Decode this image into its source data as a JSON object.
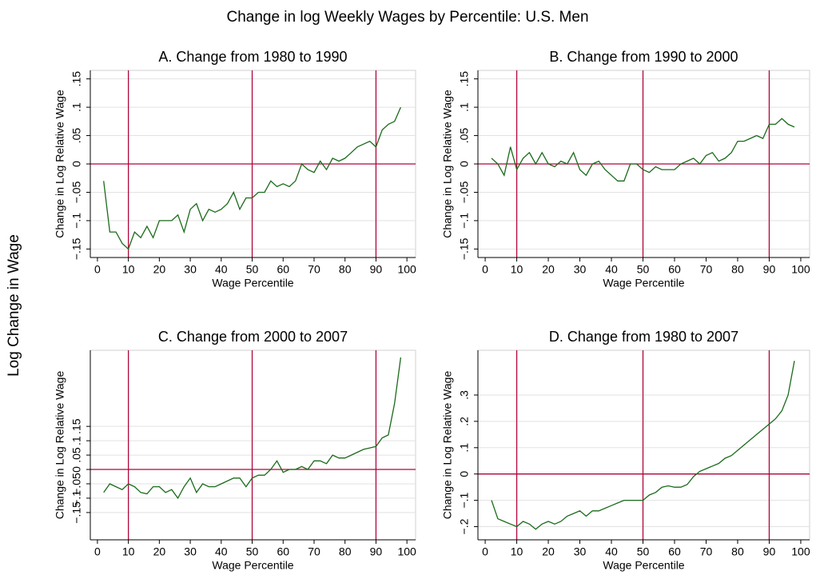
{
  "title": "Change in log Weekly Wages by Percentile: U.S. Men",
  "ylabel": "Log Change in Wage",
  "chart_data": [
    {
      "type": "line",
      "title": "A. Change from 1980 to 1990",
      "xlabel": "Wage Percentile",
      "ylabel": "Change in Log Relative Wage",
      "x": [
        2,
        4,
        6,
        8,
        10,
        12,
        14,
        16,
        18,
        20,
        22,
        24,
        26,
        28,
        30,
        32,
        34,
        36,
        38,
        40,
        42,
        44,
        46,
        48,
        50,
        52,
        54,
        56,
        58,
        60,
        62,
        64,
        66,
        68,
        70,
        72,
        74,
        76,
        78,
        80,
        82,
        84,
        86,
        88,
        90,
        92,
        94,
        96,
        98
      ],
      "values": [
        -0.03,
        -0.12,
        -0.12,
        -0.14,
        -0.15,
        -0.12,
        -0.13,
        -0.11,
        -0.13,
        -0.1,
        -0.1,
        -0.1,
        -0.09,
        -0.12,
        -0.08,
        -0.07,
        -0.1,
        -0.08,
        -0.085,
        -0.08,
        -0.07,
        -0.05,
        -0.08,
        -0.06,
        -0.06,
        -0.05,
        -0.05,
        -0.03,
        -0.04,
        -0.035,
        -0.04,
        -0.03,
        0.0,
        -0.01,
        -0.015,
        0.005,
        -0.01,
        0.01,
        0.005,
        0.01,
        0.02,
        0.03,
        0.035,
        0.04,
        0.03,
        0.06,
        0.07,
        0.075,
        0.1
      ],
      "color": "#1a6b1a",
      "xlim": [
        -2.3,
        102.8
      ],
      "ylim": [
        -0.165,
        0.165
      ],
      "xticks": [
        0,
        10,
        20,
        30,
        40,
        50,
        60,
        70,
        80,
        90,
        100
      ],
      "yticks": [
        {
          "value": -0.15,
          "label": "−.15"
        },
        {
          "value": -0.1,
          "label": "−.1"
        },
        {
          "value": -0.05,
          "label": "−.05"
        },
        0,
        {
          "value": 0.05,
          "label": ".05"
        },
        {
          "value": 0.1,
          "label": ".1"
        },
        {
          "value": 0.15,
          "label": ".15"
        }
      ],
      "grid": true,
      "reference_lines": {
        "x": [
          10,
          50,
          90
        ],
        "y": [
          0
        ],
        "color": "#b0063a"
      }
    },
    {
      "type": "line",
      "title": "B. Change from 1990 to 2000",
      "xlabel": "Wage Percentile",
      "ylabel": "Change in Log Relative Wage",
      "x": [
        2,
        4,
        6,
        8,
        10,
        12,
        14,
        16,
        18,
        20,
        22,
        24,
        26,
        28,
        30,
        32,
        34,
        36,
        38,
        40,
        42,
        44,
        46,
        48,
        50,
        52,
        54,
        56,
        58,
        60,
        62,
        64,
        66,
        68,
        70,
        72,
        74,
        76,
        78,
        80,
        82,
        84,
        86,
        88,
        90,
        92,
        94,
        96,
        98
      ],
      "values": [
        0.01,
        0.0,
        -0.02,
        0.03,
        -0.01,
        0.01,
        0.02,
        0.0,
        0.02,
        0.0,
        -0.005,
        0.005,
        0.0,
        0.02,
        -0.01,
        -0.02,
        0.0,
        0.005,
        -0.01,
        -0.02,
        -0.03,
        -0.03,
        0.0,
        0.0,
        -0.01,
        -0.015,
        -0.005,
        -0.01,
        -0.01,
        -0.01,
        0.0,
        0.005,
        0.01,
        0.0,
        0.015,
        0.02,
        0.005,
        0.01,
        0.02,
        0.04,
        0.04,
        0.045,
        0.05,
        0.045,
        0.07,
        0.07,
        0.08,
        0.07,
        0.065
      ],
      "color": "#1a6b1a",
      "xlim": [
        -2.3,
        102.8
      ],
      "ylim": [
        -0.165,
        0.165
      ],
      "xticks": [
        0,
        10,
        20,
        30,
        40,
        50,
        60,
        70,
        80,
        90,
        100
      ],
      "yticks": [
        {
          "value": -0.15,
          "label": "−.15"
        },
        {
          "value": -0.1,
          "label": "−.1"
        },
        {
          "value": -0.05,
          "label": "−.05"
        },
        0,
        {
          "value": 0.05,
          "label": ".05"
        },
        {
          "value": 0.1,
          "label": ".1"
        },
        {
          "value": 0.15,
          "label": ".15"
        }
      ],
      "grid": true,
      "reference_lines": {
        "x": [
          10,
          50,
          90
        ],
        "y": [
          0
        ],
        "color": "#b0063a"
      }
    },
    {
      "type": "line",
      "title": "C. Change from 2000 to 2007",
      "xlabel": "Wage Percentile",
      "ylabel": "Change in Log Relative Wage",
      "x": [
        2,
        4,
        6,
        8,
        10,
        12,
        14,
        16,
        18,
        20,
        22,
        24,
        26,
        28,
        30,
        32,
        34,
        36,
        38,
        40,
        42,
        44,
        46,
        48,
        50,
        52,
        54,
        56,
        58,
        60,
        62,
        64,
        66,
        68,
        70,
        72,
        74,
        76,
        78,
        80,
        82,
        84,
        86,
        88,
        90,
        92,
        94,
        96,
        98
      ],
      "values": [
        -0.08,
        -0.05,
        -0.06,
        -0.07,
        -0.05,
        -0.06,
        -0.08,
        -0.085,
        -0.06,
        -0.06,
        -0.08,
        -0.07,
        -0.1,
        -0.06,
        -0.03,
        -0.08,
        -0.05,
        -0.06,
        -0.06,
        -0.05,
        -0.04,
        -0.03,
        -0.03,
        -0.06,
        -0.03,
        -0.02,
        -0.02,
        0.0,
        0.03,
        -0.01,
        0.0,
        0.0,
        0.01,
        0.0,
        0.03,
        0.03,
        0.02,
        0.05,
        0.04,
        0.04,
        0.05,
        0.06,
        0.07,
        0.075,
        0.08,
        0.11,
        0.12,
        0.23,
        0.39
      ],
      "color": "#1a6b1a",
      "xlim": [
        -2.3,
        102.8
      ],
      "ylim": [
        -0.245,
        0.415
      ],
      "xticks": [
        0,
        10,
        20,
        30,
        40,
        50,
        60,
        70,
        80,
        90,
        100
      ],
      "yticks": [
        {
          "value": -0.15,
          "label": "−.15"
        },
        {
          "value": -0.1,
          "label": "−.1"
        },
        {
          "value": -0.05,
          "label": "−.05"
        },
        0,
        {
          "value": 0.05,
          "label": ".05"
        },
        {
          "value": 0.1,
          "label": ".1"
        },
        {
          "value": 0.15,
          "label": ".15"
        }
      ],
      "grid": true,
      "reference_lines": {
        "x": [
          10,
          50,
          90
        ],
        "y": [
          0
        ],
        "color": "#b0063a"
      }
    },
    {
      "type": "line",
      "title": "D. Change from 1980 to 2007",
      "xlabel": "Wage Percentile",
      "ylabel": "Change in Log Relative Wage",
      "x": [
        2,
        4,
        6,
        8,
        10,
        12,
        14,
        16,
        18,
        20,
        22,
        24,
        26,
        28,
        30,
        32,
        34,
        36,
        38,
        40,
        42,
        44,
        46,
        48,
        50,
        52,
        54,
        56,
        58,
        60,
        62,
        64,
        66,
        68,
        70,
        72,
        74,
        76,
        78,
        80,
        82,
        84,
        86,
        88,
        90,
        92,
        94,
        96,
        98
      ],
      "values": [
        -0.1,
        -0.17,
        -0.18,
        -0.19,
        -0.2,
        -0.18,
        -0.19,
        -0.21,
        -0.19,
        -0.18,
        -0.19,
        -0.18,
        -0.16,
        -0.15,
        -0.14,
        -0.16,
        -0.14,
        -0.14,
        -0.13,
        -0.12,
        -0.11,
        -0.1,
        -0.1,
        -0.1,
        -0.1,
        -0.08,
        -0.07,
        -0.05,
        -0.045,
        -0.05,
        -0.05,
        -0.04,
        -0.01,
        0.01,
        0.02,
        0.03,
        0.04,
        0.06,
        0.07,
        0.09,
        0.11,
        0.13,
        0.15,
        0.17,
        0.19,
        0.21,
        0.24,
        0.3,
        0.43
      ],
      "color": "#1a6b1a",
      "xlim": [
        -2.3,
        102.8
      ],
      "ylim": [
        -0.25,
        0.47
      ],
      "xticks": [
        0,
        10,
        20,
        30,
        40,
        50,
        60,
        70,
        80,
        90,
        100
      ],
      "yticks": [
        {
          "value": -0.2,
          "label": "−.2"
        },
        {
          "value": -0.1,
          "label": "−.1"
        },
        0,
        {
          "value": 0.1,
          "label": ".1"
        },
        {
          "value": 0.2,
          "label": ".2"
        },
        {
          "value": 0.3,
          "label": ".3"
        }
      ],
      "grid": true,
      "reference_lines": {
        "x": [
          10,
          50,
          90
        ],
        "y": [
          0
        ],
        "color": "#b0063a"
      }
    }
  ]
}
